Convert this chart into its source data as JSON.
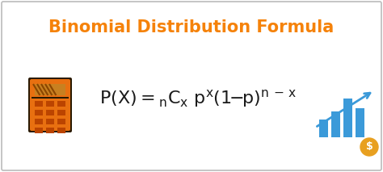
{
  "title": "Binomial Distribution Formula",
  "title_color": "#F5820A",
  "title_fontsize": 15,
  "formula_color": "#1a1a1a",
  "formula_fontsize": 16,
  "background_color": "#ffffff",
  "border_color": "#bbbbbb",
  "calc_body_color": "#E87010",
  "calc_screen_color": "#C88020",
  "calc_screen_stripe": "#8B4500",
  "calc_btn_color": "#bb4400",
  "calc_dark": "#2a1a00",
  "chart_color": "#3B9AD9",
  "dollar_color": "#E8A020",
  "arrow_color": "#3B9AD9",
  "fig_width": 4.74,
  "fig_height": 2.13,
  "dpi": 100
}
